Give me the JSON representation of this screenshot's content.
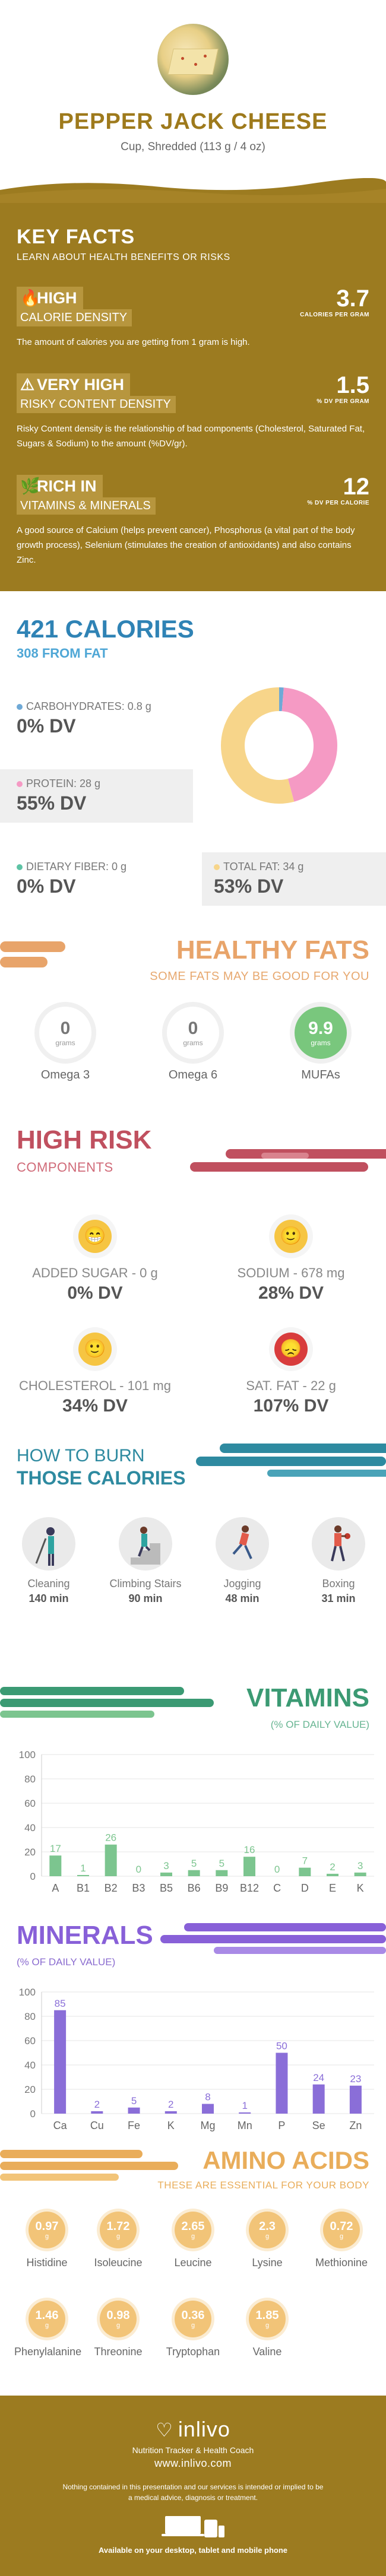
{
  "header": {
    "title": "PEPPER JACK CHEESE",
    "serving": "Cup, Shredded (113 g / 4 oz)"
  },
  "key_facts": {
    "title": "KEY FACTS",
    "subtitle": "LEARN ABOUT HEALTH BENEFITS OR RISKS",
    "facts": [
      {
        "icon": "flame-icon",
        "level": "HIGH",
        "label": "CALORIE DENSITY",
        "value": "3.7",
        "unit": "CALORIES PER GRAM",
        "desc": "The amount of calories you are getting from 1 gram is high."
      },
      {
        "icon": "warning-icon",
        "level": "VERY HIGH",
        "label": "RISKY CONTENT DENSITY",
        "value": "1.5",
        "unit": "% DV PER GRAM",
        "desc": "Risky Content density is the relationship of bad components (Cholesterol, Saturated Fat, Sugars & Sodium) to the amount (%DV/gr)."
      },
      {
        "icon": "leaf-icon",
        "level": "RICH IN",
        "label": "VITAMINS & MINERALS",
        "value": "12",
        "unit": "% DV PER CALORIE",
        "desc": "A good source of Calcium (helps prevent cancer), Phosphorus (a vital part of the body growth process), Selenium (stimulates the creation of antioxidants) and also contains Zinc."
      }
    ]
  },
  "calories": {
    "title": "421 CALORIES",
    "from_fat": "308 FROM FAT",
    "macros": [
      {
        "label": "CARBOHYDRATES: 0.8 g",
        "dv": "0% DV",
        "color": "#6fa9d6"
      },
      {
        "label": "PROTEIN: 28 g",
        "dv": "55% DV",
        "color": "#f59ac4"
      },
      {
        "label": "DIETARY FIBER: 0 g",
        "dv": "0% DV",
        "color": "#5ec3a5"
      }
    ],
    "fat": {
      "label": "TOTAL FAT: 34 g",
      "dv": "53% DV",
      "color": "#f7d58a"
    }
  },
  "healthy_fats": {
    "title": "HEALTHY FATS",
    "subtitle": "SOME FATS MAY BE GOOD FOR YOU",
    "items": [
      {
        "value": "0",
        "unit": "grams",
        "name": "Omega 3"
      },
      {
        "value": "0",
        "unit": "grams",
        "name": "Omega 6"
      },
      {
        "value": "9.9",
        "unit": "grams",
        "name": "MUFAs"
      }
    ]
  },
  "high_risk": {
    "title": "HIGH RISK",
    "subtitle": "COMPONENTS",
    "items": [
      {
        "label": "ADDED SUGAR - 0 g",
        "dv": "0% DV",
        "face": "grin"
      },
      {
        "label": "SODIUM - 678 mg",
        "dv": "28% DV",
        "face": "smile"
      },
      {
        "label": "CHOLESTEROL - 101 mg",
        "dv": "34% DV",
        "face": "smile"
      },
      {
        "label": "SAT. FAT - 22 g",
        "dv": "107% DV",
        "face": "sad"
      }
    ]
  },
  "burn": {
    "title_1": "HOW TO BURN",
    "title_2": "THOSE CALORIES",
    "activities": [
      {
        "name": "Cleaning",
        "minutes": "140 min"
      },
      {
        "name": "Climbing Stairs",
        "minutes": "90 min"
      },
      {
        "name": "Jogging",
        "minutes": "48 min"
      },
      {
        "name": "Boxing",
        "minutes": "31 min"
      }
    ]
  },
  "vitamins": {
    "title": "VITAMINS",
    "subtitle": "(% OF DAILY VALUE)"
  },
  "minerals": {
    "title": "MINERALS",
    "subtitle": "(% OF DAILY VALUE)"
  },
  "amino_acids": {
    "title": "AMINO ACIDS",
    "subtitle": "THESE ARE ESSENTIAL FOR YOUR BODY",
    "unit": "g",
    "items": [
      {
        "name": "Histidine",
        "value": "0.97"
      },
      {
        "name": "Isoleucine",
        "value": "1.72"
      },
      {
        "name": "Leucine",
        "value": "2.65"
      },
      {
        "name": "Lysine",
        "value": "2.3"
      },
      {
        "name": "Methionine",
        "value": "0.72"
      },
      {
        "name": "Phenylalanine",
        "value": "1.46"
      },
      {
        "name": "Threonine",
        "value": "0.98"
      },
      {
        "name": "Tryptophan",
        "value": "0.36"
      },
      {
        "name": "Valine",
        "value": "1.85"
      }
    ]
  },
  "footer": {
    "brand": "inlivo",
    "tagline": "Nutrition Tracker & Health Coach",
    "url": "www.inlivo.com",
    "disclaimer": "Nothing contained in this presentation and our services is intended or implied to be a medical advice, diagnosis or treatment.",
    "available": "Available on your desktop, tablet and mobile phone"
  },
  "chart_data": [
    {
      "type": "pie",
      "title": "",
      "categories": [
        "Carbohydrates",
        "Protein",
        "Total Fat"
      ],
      "values": [
        0.8,
        28,
        34
      ],
      "colors": [
        "#6fa9d6",
        "#f59ac4",
        "#f7d58a"
      ]
    },
    {
      "type": "bar",
      "title": "VITAMINS",
      "subtitle": "(% OF DAILY VALUE)",
      "categories": [
        "A",
        "B1",
        "B2",
        "B3",
        "B5",
        "B6",
        "B9",
        "B12",
        "C",
        "D",
        "E",
        "K"
      ],
      "values": [
        17,
        1,
        26,
        0,
        3,
        5,
        5,
        16,
        0,
        7,
        2,
        3
      ],
      "ylim": [
        0,
        100
      ],
      "yticks": [
        0,
        20,
        40,
        60,
        80,
        100
      ],
      "color": "#7cc58f"
    },
    {
      "type": "bar",
      "title": "MINERALS",
      "subtitle": "(% OF DAILY VALUE)",
      "categories": [
        "Ca",
        "Cu",
        "Fe",
        "K",
        "Mg",
        "Mn",
        "P",
        "Se",
        "Zn"
      ],
      "values": [
        85,
        2,
        5,
        2,
        8,
        1,
        50,
        24,
        23
      ],
      "ylim": [
        0,
        100
      ],
      "yticks": [
        0,
        20,
        40,
        60,
        80,
        100
      ],
      "color": "#8a6ed8"
    }
  ]
}
